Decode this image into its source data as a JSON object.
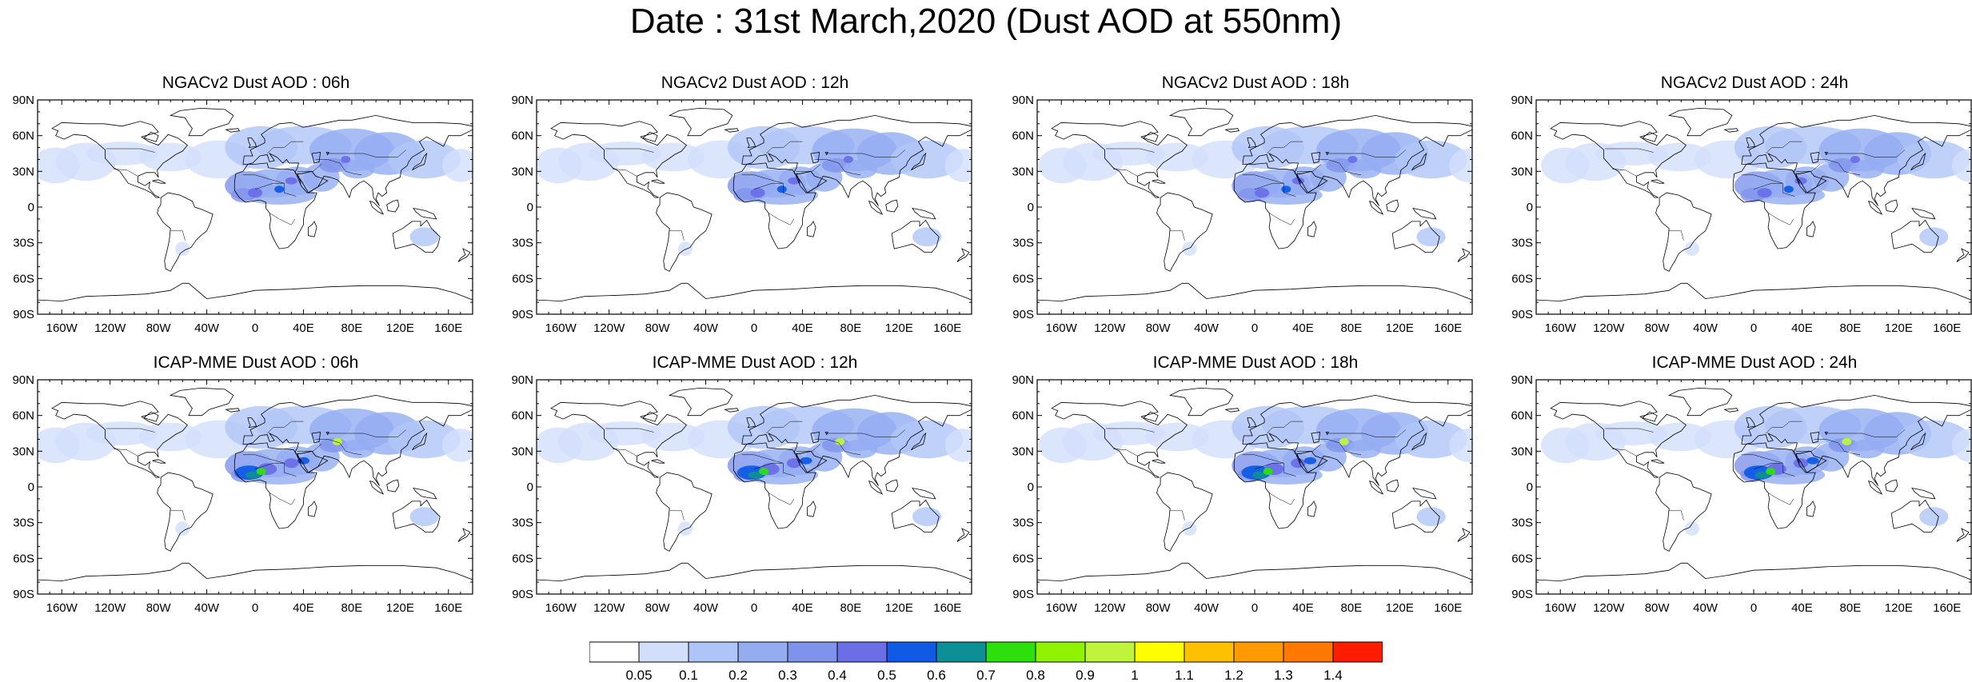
{
  "title": "Date : 31st March,2020 (Dust AOD at 550nm)",
  "panels": [
    {
      "title": "NGACv2 Dust AOD : 06h",
      "model": "NGACv2",
      "lead": "06h"
    },
    {
      "title": "NGACv2 Dust AOD : 12h",
      "model": "NGACv2",
      "lead": "12h"
    },
    {
      "title": "NGACv2 Dust AOD : 18h",
      "model": "NGACv2",
      "lead": "18h"
    },
    {
      "title": "NGACv2 Dust AOD : 24h",
      "model": "NGACv2",
      "lead": "24h"
    },
    {
      "title": "ICAP-MME Dust AOD : 06h",
      "model": "ICAP-MME",
      "lead": "06h"
    },
    {
      "title": "ICAP-MME Dust AOD : 12h",
      "model": "ICAP-MME",
      "lead": "12h"
    },
    {
      "title": "ICAP-MME Dust AOD : 18h",
      "model": "ICAP-MME",
      "lead": "18h"
    },
    {
      "title": "ICAP-MME Dust AOD : 24h",
      "model": "ICAP-MME",
      "lead": "24h"
    }
  ],
  "map": {
    "projection": "cylindrical-equidistant",
    "lon_range": [
      -180,
      180
    ],
    "lat_range": [
      -90,
      90
    ],
    "lat_ticks": [
      {
        "value": 90,
        "label": "90N"
      },
      {
        "value": 60,
        "label": "60N"
      },
      {
        "value": 30,
        "label": "30N"
      },
      {
        "value": 0,
        "label": "0"
      },
      {
        "value": -30,
        "label": "30S"
      },
      {
        "value": -60,
        "label": "60S"
      },
      {
        "value": -90,
        "label": "90S"
      }
    ],
    "lon_ticks": [
      {
        "value": -160,
        "label": "160W"
      },
      {
        "value": -120,
        "label": "120W"
      },
      {
        "value": -80,
        "label": "80W"
      },
      {
        "value": -40,
        "label": "40W"
      },
      {
        "value": 0,
        "label": "0"
      },
      {
        "value": 40,
        "label": "40E"
      },
      {
        "value": 80,
        "label": "80E"
      },
      {
        "value": 120,
        "label": "120E"
      },
      {
        "value": 160,
        "label": "160E"
      }
    ]
  },
  "colorbar": {
    "boundaries": [
      "0.05",
      "0.1",
      "0.2",
      "0.3",
      "0.4",
      "0.5",
      "0.6",
      "0.7",
      "0.8",
      "0.9",
      "1",
      "1.1",
      "1.2",
      "1.3",
      "1.4"
    ],
    "colors": [
      "#ffffff",
      "#d2dffb",
      "#b0c5f7",
      "#94adf2",
      "#7f93ec",
      "#6a6fe8",
      "#0f5be6",
      "#0c8f95",
      "#2ddf0d",
      "#8ff200",
      "#bff43c",
      "#ffff00",
      "#ffc000",
      "#ff9a00",
      "#ff7800",
      "#ff1d00"
    ]
  }
}
